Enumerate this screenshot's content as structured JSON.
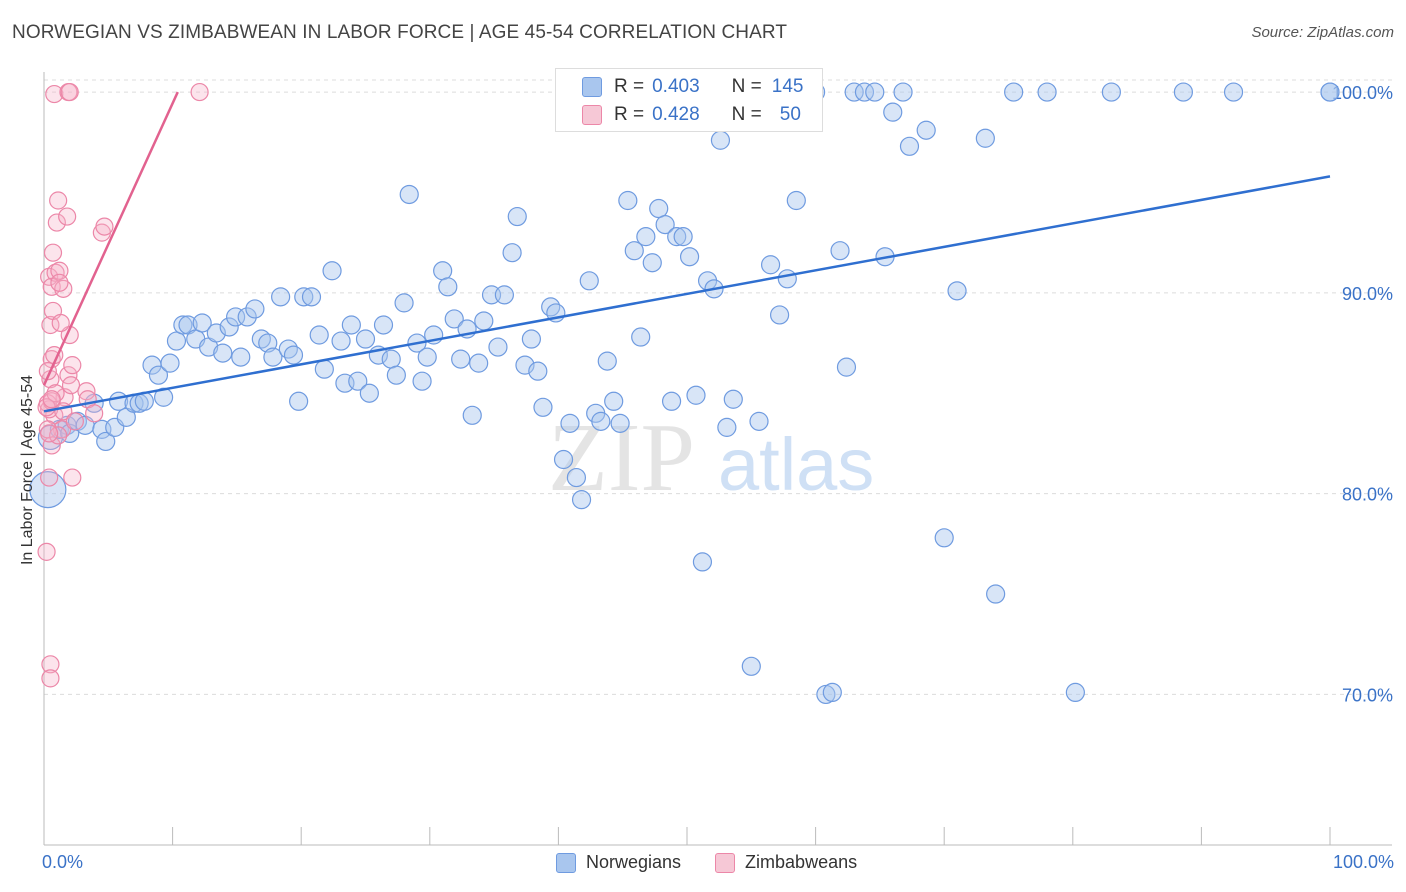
{
  "title": "NORWEGIAN VS ZIMBABWEAN IN LABOR FORCE | AGE 45-54 CORRELATION CHART",
  "source": "Source: ZipAtlas.com",
  "watermark": {
    "zip": "ZIP",
    "atlas": "atlas"
  },
  "legend_box": {
    "rows": [
      {
        "r_label": "R =",
        "r_value": "0.403",
        "n_label": "N =",
        "n_value": "145"
      },
      {
        "r_label": "R =",
        "r_value": "0.428",
        "n_label": "N =",
        "n_value": "50"
      }
    ]
  },
  "bottom_legend": {
    "norwegians": "Norwegians",
    "zimbabweans": "Zimbabweans"
  },
  "colors": {
    "blue_fill": "#a9c6ee",
    "blue_stroke": "#6f9be0",
    "blue_line": "#2f6fd0",
    "pink_fill": "#f6b3c8",
    "pink_stroke": "#ec87a8",
    "pink_line": "#e2628f",
    "tick_text": "#3a72c7",
    "grid": "#dcdcdc"
  },
  "chart_data": {
    "type": "scatter",
    "title": "NORWEGIAN VS ZIMBABWEAN IN LABOR FORCE | AGE 45-54 CORRELATION CHART",
    "xlabel": "",
    "ylabel": "In Labor Force | Age 45-54",
    "xlim": [
      0,
      100
    ],
    "ylim": [
      62.5,
      101
    ],
    "x_tick_labels": [
      "0.0%",
      "100.0%"
    ],
    "y_ticks": [
      70,
      80,
      90,
      100
    ],
    "y_tick_labels": [
      "70.0%",
      "80.0%",
      "90.0%",
      "100.0%"
    ],
    "series": [
      {
        "name": "Norwegians",
        "r": 0.403,
        "n": 145,
        "trend": {
          "x": [
            0,
            100
          ],
          "y": [
            84.1,
            95.8
          ]
        },
        "points": [
          [
            0.3,
            80.2
          ],
          [
            0.5,
            82.8
          ],
          [
            1.2,
            83.2
          ],
          [
            1.8,
            83.4
          ],
          [
            2.0,
            83.0
          ],
          [
            2.6,
            83.6
          ],
          [
            3.2,
            83.4
          ],
          [
            3.9,
            84.5
          ],
          [
            4.5,
            83.2
          ],
          [
            4.8,
            82.6
          ],
          [
            5.5,
            83.3
          ],
          [
            5.8,
            84.6
          ],
          [
            6.4,
            83.8
          ],
          [
            7.0,
            84.5
          ],
          [
            7.4,
            84.5
          ],
          [
            7.8,
            84.6
          ],
          [
            8.4,
            86.4
          ],
          [
            8.9,
            85.9
          ],
          [
            9.3,
            84.8
          ],
          [
            9.8,
            86.5
          ],
          [
            10.3,
            87.6
          ],
          [
            10.8,
            88.4
          ],
          [
            11.2,
            88.4
          ],
          [
            11.8,
            87.7
          ],
          [
            12.3,
            88.5
          ],
          [
            12.8,
            87.3
          ],
          [
            13.4,
            88.0
          ],
          [
            13.9,
            87.0
          ],
          [
            14.4,
            88.3
          ],
          [
            14.9,
            88.8
          ],
          [
            15.3,
            86.8
          ],
          [
            15.8,
            88.8
          ],
          [
            16.4,
            89.2
          ],
          [
            16.9,
            87.7
          ],
          [
            17.4,
            87.5
          ],
          [
            17.8,
            86.8
          ],
          [
            18.4,
            89.8
          ],
          [
            19.0,
            87.2
          ],
          [
            19.4,
            86.9
          ],
          [
            19.8,
            84.6
          ],
          [
            20.2,
            89.8
          ],
          [
            20.8,
            89.8
          ],
          [
            21.4,
            87.9
          ],
          [
            21.8,
            86.2
          ],
          [
            22.4,
            91.1
          ],
          [
            23.1,
            87.6
          ],
          [
            23.4,
            85.5
          ],
          [
            23.9,
            88.4
          ],
          [
            24.4,
            85.6
          ],
          [
            25.0,
            87.7
          ],
          [
            25.3,
            85.0
          ],
          [
            26.0,
            86.9
          ],
          [
            26.4,
            88.4
          ],
          [
            27.0,
            86.7
          ],
          [
            27.4,
            85.9
          ],
          [
            28.0,
            89.5
          ],
          [
            28.4,
            94.9
          ],
          [
            29.0,
            87.5
          ],
          [
            29.4,
            85.6
          ],
          [
            29.8,
            86.8
          ],
          [
            30.3,
            87.9
          ],
          [
            31.0,
            91.1
          ],
          [
            31.4,
            90.3
          ],
          [
            31.9,
            88.7
          ],
          [
            32.4,
            86.7
          ],
          [
            32.9,
            88.2
          ],
          [
            33.3,
            83.9
          ],
          [
            33.8,
            86.5
          ],
          [
            34.2,
            88.6
          ],
          [
            34.8,
            89.9
          ],
          [
            35.3,
            87.3
          ],
          [
            35.8,
            89.9
          ],
          [
            36.4,
            92.0
          ],
          [
            36.8,
            93.8
          ],
          [
            37.4,
            86.4
          ],
          [
            37.9,
            87.7
          ],
          [
            38.4,
            86.1
          ],
          [
            38.8,
            84.3
          ],
          [
            39.4,
            89.3
          ],
          [
            39.8,
            89.0
          ],
          [
            40.4,
            81.7
          ],
          [
            40.9,
            83.5
          ],
          [
            41.4,
            80.8
          ],
          [
            41.8,
            79.7
          ],
          [
            42.4,
            90.6
          ],
          [
            42.9,
            84.0
          ],
          [
            43.3,
            83.6
          ],
          [
            43.8,
            86.6
          ],
          [
            44.3,
            84.6
          ],
          [
            44.8,
            83.5
          ],
          [
            45.4,
            94.6
          ],
          [
            45.9,
            92.1
          ],
          [
            46.4,
            87.8
          ],
          [
            46.8,
            92.8
          ],
          [
            47.3,
            91.5
          ],
          [
            47.8,
            94.2
          ],
          [
            48.3,
            93.4
          ],
          [
            48.8,
            84.6
          ],
          [
            49.2,
            92.8
          ],
          [
            49.7,
            92.8
          ],
          [
            50.2,
            91.8
          ],
          [
            50.7,
            84.9
          ],
          [
            51.2,
            76.6
          ],
          [
            51.6,
            90.6
          ],
          [
            52.1,
            90.2
          ],
          [
            52.6,
            97.6
          ],
          [
            53.1,
            83.3
          ],
          [
            53.6,
            84.7
          ],
          [
            54.1,
            99.1
          ],
          [
            55.0,
            71.4
          ],
          [
            55.6,
            83.6
          ],
          [
            56.5,
            91.4
          ],
          [
            57.2,
            88.9
          ],
          [
            57.8,
            90.7
          ],
          [
            58.5,
            94.6
          ],
          [
            60.0,
            100.0
          ],
          [
            60.8,
            70.0
          ],
          [
            61.3,
            70.1
          ],
          [
            61.9,
            92.1
          ],
          [
            62.4,
            86.3
          ],
          [
            63.0,
            100.0
          ],
          [
            63.8,
            100.0
          ],
          [
            64.6,
            100.0
          ],
          [
            65.4,
            91.8
          ],
          [
            66.0,
            99.0
          ],
          [
            66.8,
            100.0
          ],
          [
            67.3,
            97.3
          ],
          [
            68.6,
            98.1
          ],
          [
            70.0,
            77.8
          ],
          [
            71.0,
            90.1
          ],
          [
            73.2,
            97.7
          ],
          [
            74.0,
            75.0
          ],
          [
            75.4,
            100.0
          ],
          [
            78.0,
            100.0
          ],
          [
            80.2,
            70.1
          ],
          [
            83.0,
            100.0
          ],
          [
            88.6,
            100.0
          ],
          [
            92.5,
            100.0
          ],
          [
            100.0,
            100.0
          ],
          [
            55.0,
            100.0
          ],
          [
            100.0,
            100.0
          ]
        ]
      },
      {
        "name": "Zimbabweans",
        "r": 0.428,
        "n": 50,
        "trend": {
          "x": [
            0,
            10.4
          ],
          "y": [
            85.4,
            100.0
          ]
        },
        "points": [
          [
            0.2,
            77.1
          ],
          [
            0.4,
            80.8
          ],
          [
            0.6,
            82.4
          ],
          [
            0.8,
            83.9
          ],
          [
            0.4,
            84.2
          ],
          [
            0.3,
            84.5
          ],
          [
            0.5,
            85.7
          ],
          [
            0.6,
            86.7
          ],
          [
            0.5,
            88.4
          ],
          [
            0.7,
            89.1
          ],
          [
            0.4,
            90.8
          ],
          [
            0.9,
            91.0
          ],
          [
            0.6,
            90.3
          ],
          [
            1.0,
            93.5
          ],
          [
            1.1,
            94.6
          ],
          [
            1.8,
            93.8
          ],
          [
            0.8,
            99.9
          ],
          [
            1.9,
            100.0
          ],
          [
            2.0,
            100.0
          ],
          [
            0.5,
            71.5
          ],
          [
            0.5,
            70.8
          ],
          [
            1.4,
            83.2
          ],
          [
            1.6,
            84.8
          ],
          [
            1.9,
            85.9
          ],
          [
            2.1,
            85.4
          ],
          [
            2.2,
            86.4
          ],
          [
            2.0,
            87.9
          ],
          [
            1.3,
            88.5
          ],
          [
            1.5,
            90.2
          ],
          [
            1.2,
            91.1
          ],
          [
            0.7,
            92.0
          ],
          [
            3.3,
            85.1
          ],
          [
            3.4,
            84.7
          ],
          [
            3.9,
            84.0
          ],
          [
            4.5,
            93.0
          ],
          [
            4.7,
            93.3
          ],
          [
            2.2,
            80.8
          ],
          [
            0.3,
            83.2
          ],
          [
            0.6,
            84.6
          ],
          [
            0.9,
            85.0
          ],
          [
            1.1,
            82.9
          ],
          [
            12.1,
            100.0
          ],
          [
            0.2,
            84.3
          ],
          [
            0.4,
            83.0
          ],
          [
            0.3,
            86.1
          ],
          [
            0.8,
            86.9
          ],
          [
            1.2,
            90.5
          ],
          [
            1.5,
            84.1
          ],
          [
            2.4,
            83.6
          ],
          [
            0.6,
            84.7
          ]
        ]
      }
    ]
  }
}
